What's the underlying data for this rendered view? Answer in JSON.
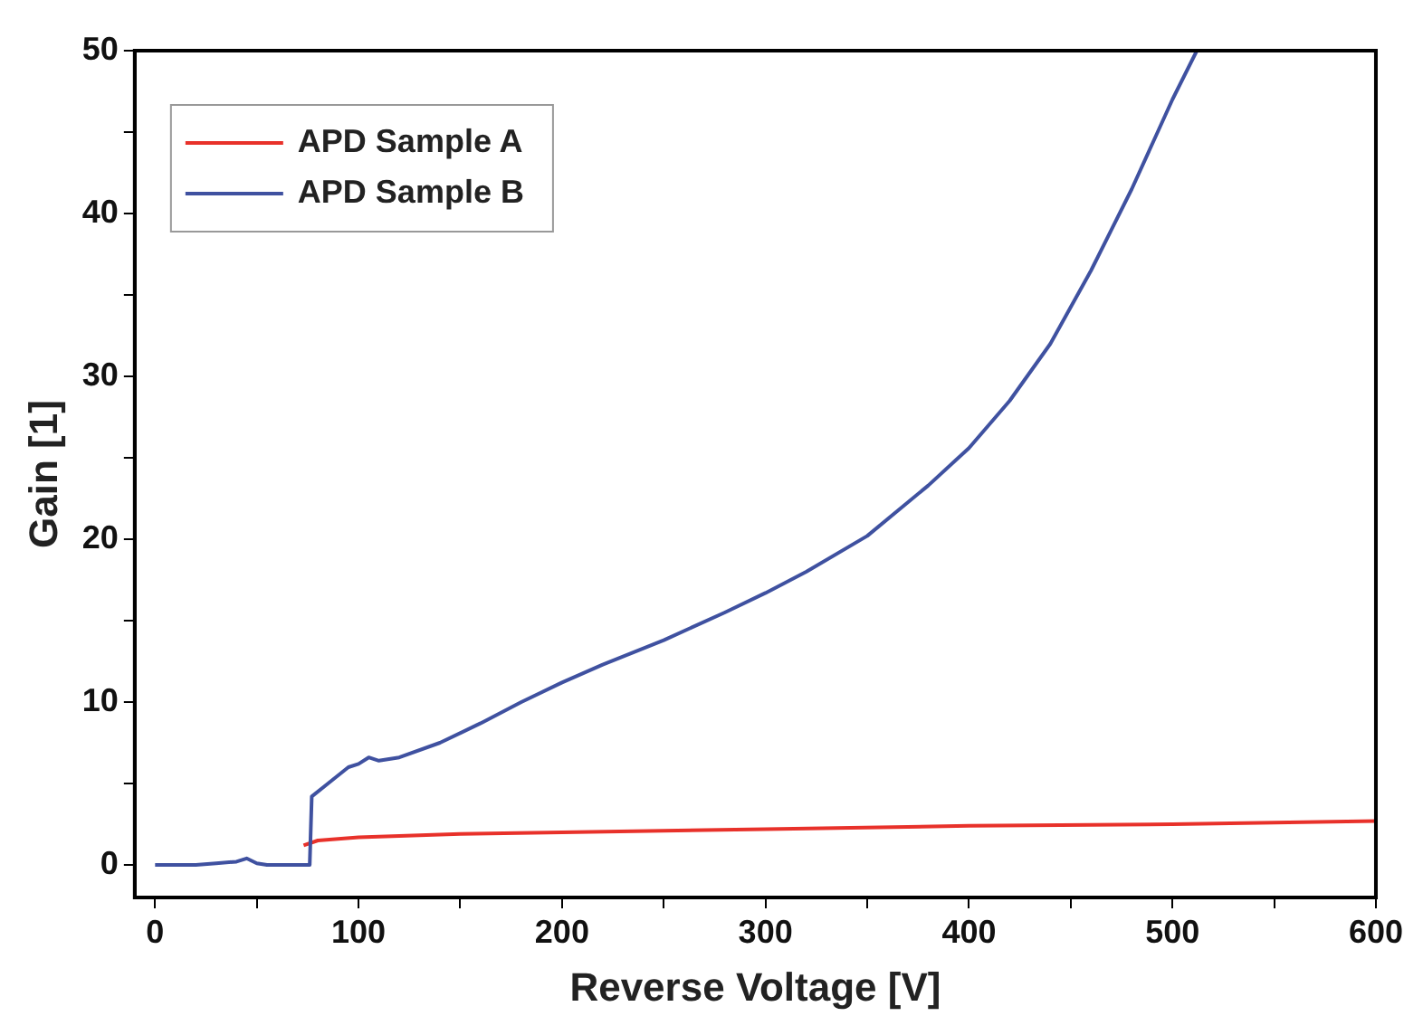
{
  "chart_data": {
    "type": "line",
    "xlabel": "Reverse Voltage [V]",
    "ylabel": "Gain [1]",
    "xlim": [
      -10,
      600
    ],
    "ylim": [
      -2,
      50
    ],
    "xticks": [
      0,
      {
        "value": 50,
        "label": null
      },
      100,
      {
        "value": 150,
        "label": null
      },
      200,
      {
        "value": 250,
        "label": null
      },
      300,
      {
        "value": 350,
        "label": null
      },
      400,
      {
        "value": 450,
        "label": null
      },
      500,
      {
        "value": 550,
        "label": null
      },
      600
    ],
    "yticks": [
      0,
      {
        "value": 5,
        "label": null
      },
      10,
      {
        "value": 15,
        "label": null
      },
      20,
      {
        "value": 25,
        "label": null
      },
      30,
      {
        "value": 35,
        "label": null
      },
      40,
      {
        "value": 45,
        "label": null
      },
      50
    ],
    "legend": "top left",
    "grid": false,
    "marker": "none",
    "line_style": "solid",
    "series": [
      {
        "name": "APD Sample A",
        "color": "#e8312a",
        "x": [
          73,
          80,
          100,
          150,
          200,
          300,
          400,
          500,
          600
        ],
        "values": [
          1.2,
          1.5,
          1.7,
          1.9,
          2.0,
          2.2,
          2.4,
          2.5,
          2.7
        ]
      },
      {
        "name": "APD Sample B",
        "color": "#3f51a0",
        "x": [
          0,
          20,
          30,
          40,
          45,
          50,
          55,
          70,
          76,
          77,
          85,
          95,
          100,
          105,
          110,
          120,
          140,
          160,
          180,
          200,
          220,
          250,
          280,
          300,
          320,
          350,
          380,
          400,
          420,
          440,
          460,
          480,
          500,
          512
        ],
        "values": [
          0,
          0,
          0.1,
          0.2,
          0.4,
          0.1,
          0,
          0,
          0,
          4.2,
          5,
          6,
          6.2,
          6.6,
          6.4,
          6.6,
          7.5,
          8.7,
          10,
          11.2,
          12.3,
          13.8,
          15.5,
          16.7,
          18,
          20.2,
          23.3,
          25.6,
          28.5,
          32,
          36.5,
          41.5,
          47,
          50
        ]
      }
    ]
  }
}
